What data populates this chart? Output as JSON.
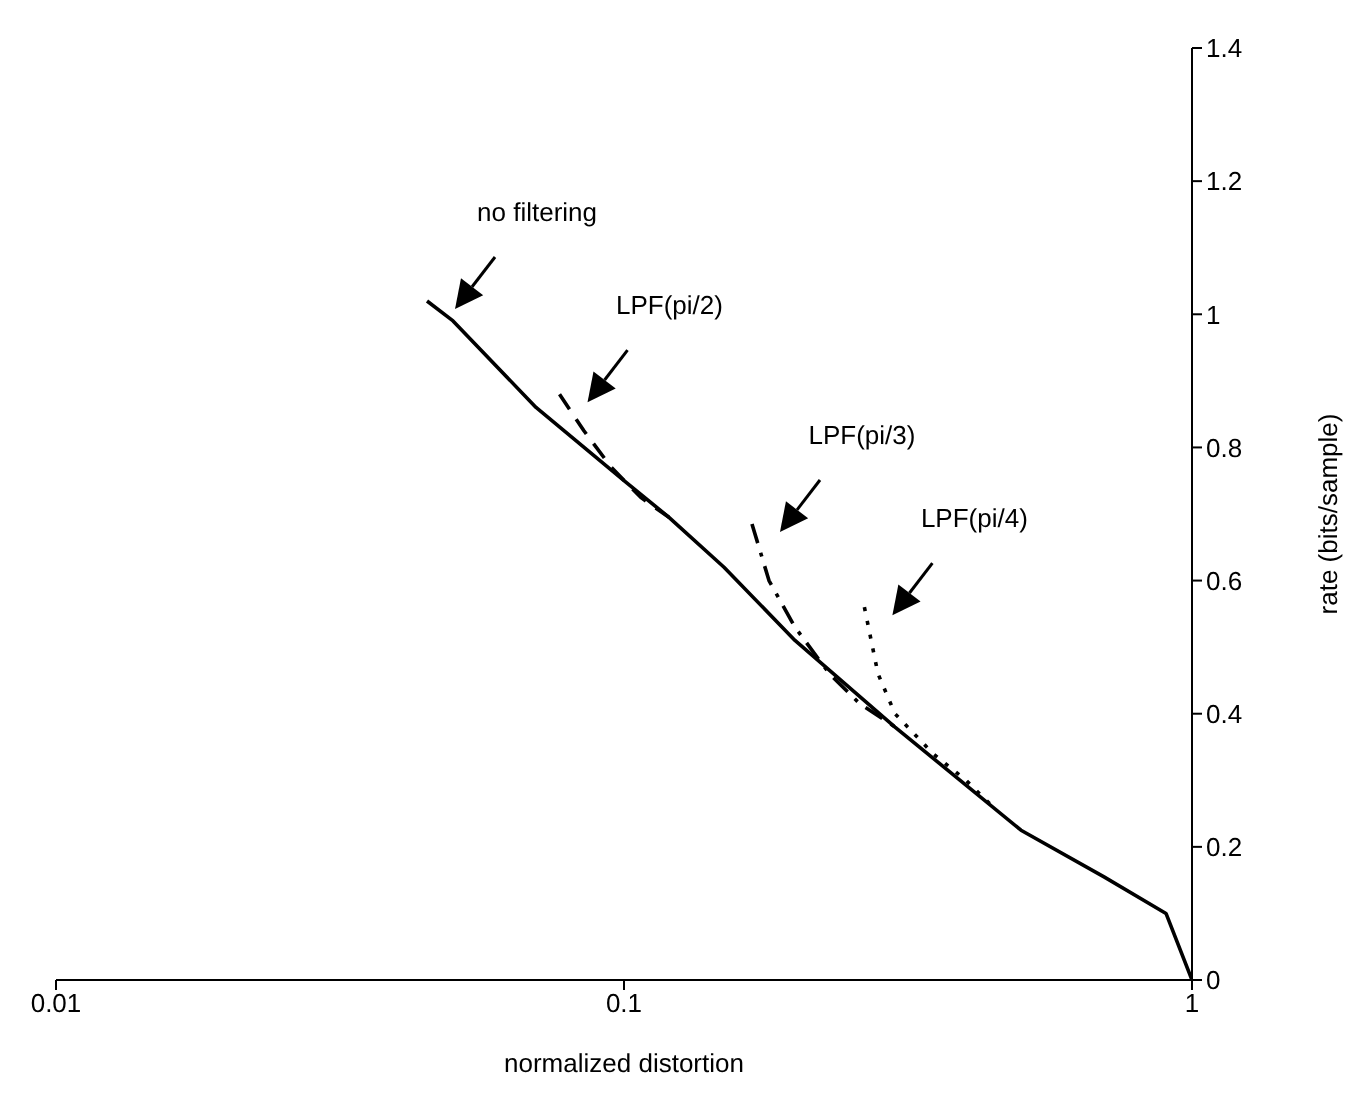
{
  "chart_data": {
    "type": "line",
    "xlabel": "normalized distortion",
    "ylabel": "rate (bits/sample)",
    "log": "x",
    "xlim": [
      0.01,
      1
    ],
    "xticks": [
      0.01,
      0.1,
      1
    ],
    "ylim": [
      0,
      1.4
    ],
    "yticks": [
      0,
      0.2,
      0.4,
      0.6,
      0.8,
      1,
      1.2,
      1.4
    ],
    "grid": false,
    "legend": false,
    "marker": "none",
    "series": [
      {
        "name": "no filtering",
        "color": "#000000",
        "line_style": "solid",
        "x": [
          0.045,
          0.05,
          0.07,
          0.1,
          0.12,
          0.15,
          0.2,
          0.3,
          0.5,
          0.7,
          0.9,
          1
        ],
        "values": [
          1.02,
          0.99,
          0.86,
          0.75,
          0.695,
          0.62,
          0.51,
          0.38,
          0.225,
          0.155,
          0.1,
          0
        ]
      },
      {
        "name": "LPF(pi/2)",
        "color": "#000000",
        "line_style": "dashed",
        "x": [
          0.077,
          0.085,
          0.095,
          0.107,
          0.12
        ],
        "values": [
          0.88,
          0.825,
          0.77,
          0.725,
          0.695
        ]
      },
      {
        "name": "LPF(pi/3)",
        "color": "#000000",
        "line_style": "dashdot",
        "x": [
          0.168,
          0.18,
          0.2,
          0.23,
          0.26,
          0.3
        ],
        "values": [
          0.685,
          0.6,
          0.53,
          0.46,
          0.415,
          0.38
        ]
      },
      {
        "name": "LPF(pi/4)",
        "color": "#000000",
        "line_style": "dotted",
        "x": [
          0.265,
          0.28,
          0.3,
          0.35,
          0.4,
          0.45
        ],
        "values": [
          0.56,
          0.46,
          0.4,
          0.34,
          0.3,
          0.257
        ]
      }
    ]
  }
}
